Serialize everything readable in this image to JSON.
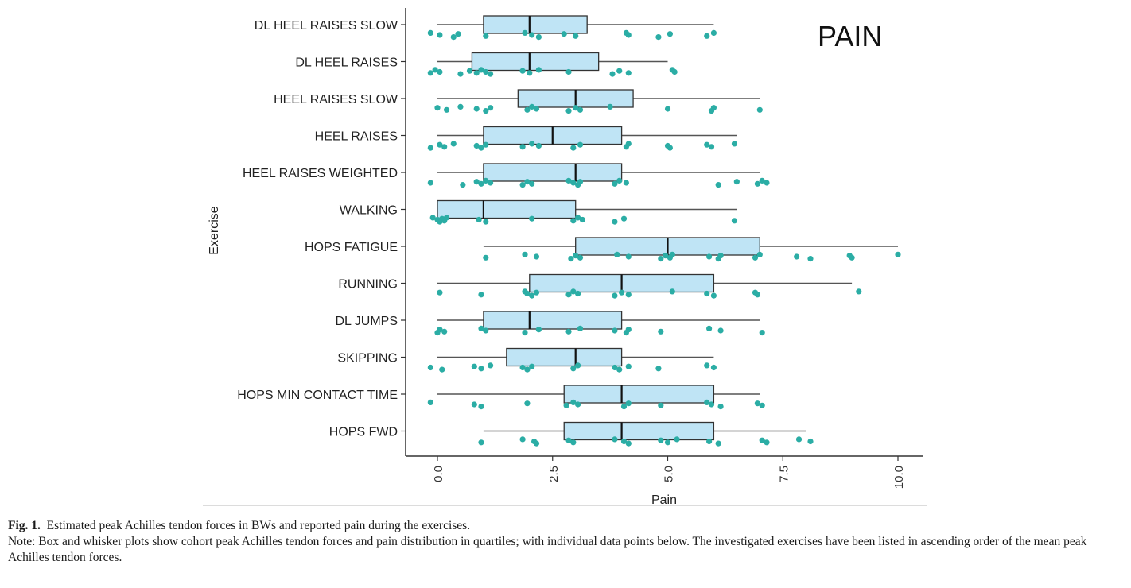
{
  "chart_data": {
    "type": "boxplot",
    "title": "PAIN",
    "xlabel": "Pain",
    "ylabel": "Exercise",
    "xlim": [
      -0.7,
      10.5
    ],
    "x_ticks": [
      "0.0",
      "2.5",
      "5.0",
      "7.5",
      "10.0"
    ],
    "x_tick_values": [
      0,
      2.5,
      5,
      7.5,
      10
    ],
    "grid": false,
    "box_color": "#bfe4f5",
    "point_color": "#2bada5",
    "categories": [
      "DL HEEL RAISES SLOW",
      "DL HEEL RAISES",
      "HEEL RAISES SLOW",
      "HEEL RAISES",
      "HEEL RAISES WEIGHTED",
      "WALKING",
      "HOPS FATIGUE",
      "RUNNING",
      "DL JUMPS",
      "SKIPPING",
      "HOPS MIN CONTACT TIME",
      "HOPS FWD"
    ],
    "boxes": [
      {
        "min": 0,
        "q1": 1,
        "median": 2,
        "q3": 3.25,
        "max": 6
      },
      {
        "min": 0,
        "q1": 0.75,
        "median": 2,
        "q3": 3.5,
        "max": 5
      },
      {
        "min": 0,
        "q1": 1.75,
        "median": 3,
        "q3": 4.25,
        "max": 7
      },
      {
        "min": 0,
        "q1": 1,
        "median": 2.5,
        "q3": 4,
        "max": 6.5
      },
      {
        "min": 0,
        "q1": 1,
        "median": 3,
        "q3": 4,
        "max": 7
      },
      {
        "min": 0,
        "q1": 0,
        "median": 1,
        "q3": 3,
        "max": 6.5
      },
      {
        "min": 1,
        "q1": 3,
        "median": 5,
        "q3": 7,
        "max": 10
      },
      {
        "min": 0,
        "q1": 2,
        "median": 4,
        "q3": 6,
        "max": 9
      },
      {
        "min": 0,
        "q1": 1,
        "median": 2,
        "q3": 4,
        "max": 7
      },
      {
        "min": 0,
        "q1": 1.5,
        "median": 3,
        "q3": 4,
        "max": 6
      },
      {
        "min": 0,
        "q1": 2.75,
        "median": 4,
        "q3": 6,
        "max": 7
      },
      {
        "min": 1,
        "q1": 2.75,
        "median": 4,
        "q3": 6,
        "max": 8
      }
    ],
    "points": [
      [
        -0.15,
        0.05,
        0.35,
        0.45,
        1.05,
        1.9,
        2.05,
        2.2,
        2.75,
        3.0,
        4.1,
        4.15,
        4.8,
        5.05,
        5.85,
        6.0
      ],
      [
        -0.15,
        -0.05,
        0.05,
        0.5,
        0.7,
        0.85,
        0.95,
        1.05,
        1.15,
        1.85,
        2.0,
        2.2,
        2.85,
        3.8,
        3.95,
        4.15,
        5.1,
        5.15
      ],
      [
        0.0,
        0.2,
        0.5,
        0.85,
        1.05,
        1.15,
        1.95,
        2.05,
        2.15,
        2.85,
        3.0,
        3.1,
        3.75,
        5.0,
        5.95,
        6.0,
        7.0
      ],
      [
        -0.15,
        0.05,
        0.15,
        0.35,
        0.85,
        0.95,
        1.05,
        1.85,
        2.05,
        2.2,
        2.95,
        3.1,
        4.1,
        4.15,
        5.0,
        5.05,
        5.85,
        5.95,
        6.45
      ],
      [
        -0.15,
        0.55,
        0.85,
        0.95,
        1.05,
        1.15,
        1.85,
        1.95,
        2.05,
        2.85,
        2.95,
        3.05,
        3.1,
        3.85,
        3.95,
        4.1,
        6.1,
        6.5,
        6.95,
        7.05,
        7.15
      ],
      [
        -0.1,
        0.0,
        0.05,
        0.1,
        0.15,
        0.2,
        0.9,
        1.05,
        2.05,
        2.95,
        3.05,
        3.15,
        3.85,
        4.05,
        6.45
      ],
      [
        1.05,
        1.9,
        2.15,
        2.9,
        3.0,
        3.1,
        3.9,
        4.15,
        4.85,
        4.95,
        5.05,
        5.1,
        5.9,
        6.1,
        6.15,
        6.9,
        7.0,
        7.8,
        8.1,
        8.95,
        9.0,
        10.0
      ],
      [
        0.05,
        0.95,
        1.9,
        1.95,
        2.05,
        2.15,
        2.85,
        2.95,
        3.05,
        3.85,
        4.0,
        4.15,
        5.1,
        5.85,
        6.0,
        6.9,
        6.95,
        9.15
      ],
      [
        0.0,
        0.05,
        0.15,
        0.95,
        1.05,
        1.9,
        2.2,
        2.85,
        3.1,
        3.85,
        4.1,
        4.15,
        4.85,
        5.9,
        6.15,
        7.05
      ],
      [
        -0.15,
        0.1,
        0.8,
        0.95,
        1.15,
        1.85,
        1.95,
        2.05,
        2.95,
        3.05,
        3.85,
        3.95,
        4.15,
        4.8,
        5.85,
        6.0
      ],
      [
        -0.15,
        0.8,
        0.95,
        1.95,
        2.8,
        2.95,
        3.05,
        4.05,
        4.15,
        4.85,
        5.85,
        5.95,
        6.15,
        6.95,
        7.05
      ],
      [
        0.95,
        1.85,
        2.1,
        2.15,
        2.85,
        2.95,
        3.85,
        4.05,
        4.15,
        4.85,
        5.0,
        5.2,
        5.9,
        6.1,
        7.05,
        7.15,
        7.85,
        8.1
      ]
    ]
  },
  "caption": {
    "label": "Fig. 1.",
    "text": "Estimated peak Achilles tendon forces in BWs and reported pain during the exercises.",
    "note": "Note: Box and whisker plots show cohort peak Achilles tendon forces and pain distribution in quartiles; with individual data points below. The investigated exercises have been listed in ascending order of the mean peak Achilles tendon forces."
  }
}
